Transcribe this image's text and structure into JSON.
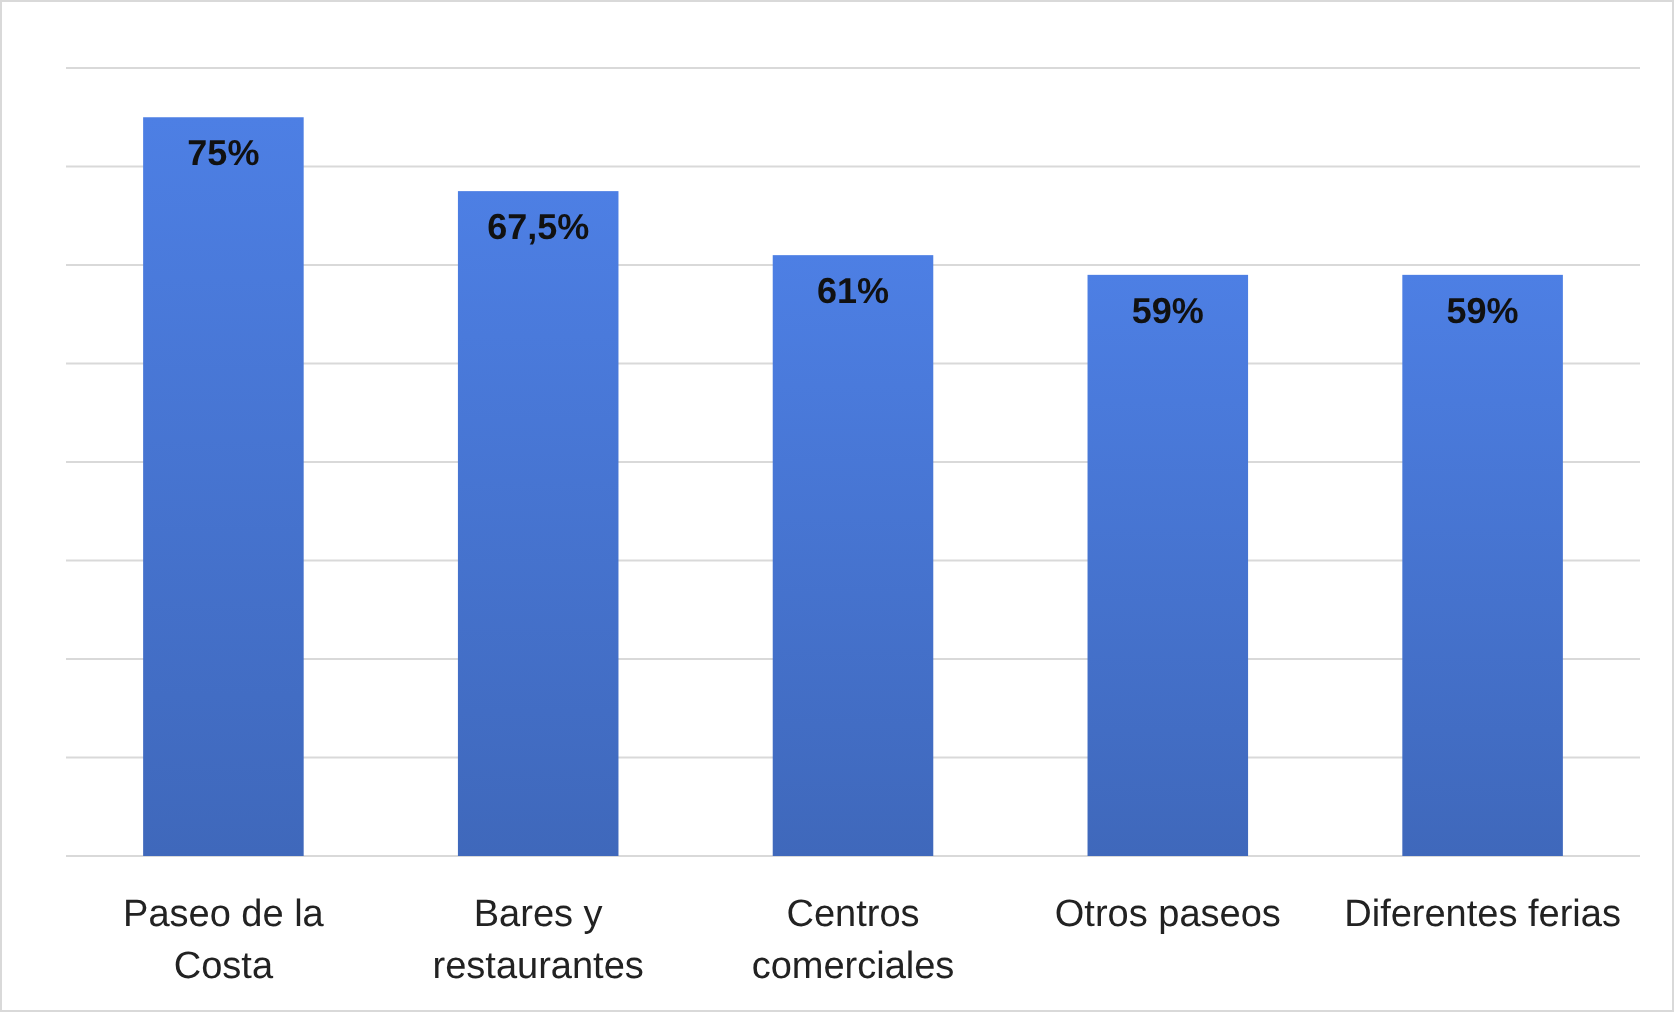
{
  "chart_data": {
    "type": "bar",
    "categories": [
      "Paseo de la Costa",
      "Bares y restaurantes",
      "Centros comerciales",
      "Otros paseos",
      "Diferentes ferias"
    ],
    "values": [
      75,
      67.5,
      61,
      59,
      59
    ],
    "value_labels": [
      "75%",
      "67,5%",
      "61%",
      "59%",
      "59%"
    ],
    "color": "#4470c9",
    "ylim": [
      0,
      80
    ],
    "yticks": [
      {
        "value": 0,
        "label": null
      },
      {
        "value": 10,
        "label": null
      },
      {
        "value": 20,
        "label": null
      },
      {
        "value": 30,
        "label": null
      },
      {
        "value": 40,
        "label": null
      },
      {
        "value": 50,
        "label": null
      },
      {
        "value": 60,
        "label": null
      },
      {
        "value": 70,
        "label": null
      },
      {
        "value": 80,
        "label": null
      }
    ],
    "grid": "y",
    "tick_labels": "x"
  }
}
